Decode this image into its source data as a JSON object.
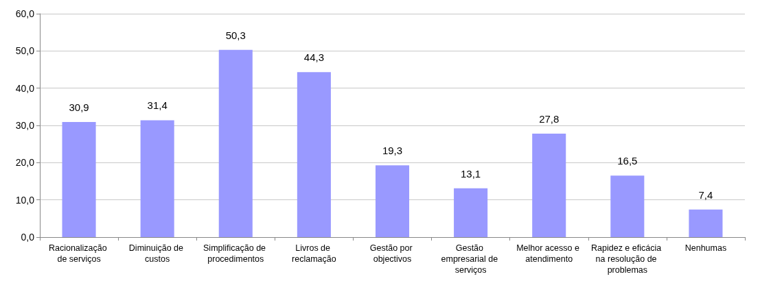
{
  "chart_data": {
    "type": "bar",
    "categories": [
      "Racionalização de serviços",
      "Diminuição de custos",
      "Simplificação de procedimentos",
      "Livros de reclamação",
      "Gestão por objectivos",
      "Gestão empresarial de serviços",
      "Melhor acesso e atendimento",
      "Rapidez e eficácia na resolução de problemas",
      "Nenhumas"
    ],
    "values": [
      30.9,
      31.4,
      50.3,
      44.3,
      19.3,
      13.1,
      27.8,
      16.5,
      7.4
    ],
    "value_labels": [
      "30,9",
      "31,4",
      "50,3",
      "44,3",
      "19,3",
      "13,1",
      "27,8",
      "16,5",
      "7,4"
    ],
    "color": "#9999ff",
    "ylim": [
      0,
      60
    ],
    "yticks": [
      {
        "value": 0,
        "label": "0,0"
      },
      {
        "value": 10,
        "label": "10,0"
      },
      {
        "value": 20,
        "label": "20,0"
      },
      {
        "value": 30,
        "label": "30,0"
      },
      {
        "value": 40,
        "label": "40,0"
      },
      {
        "value": 50,
        "label": "50,0"
      },
      {
        "value": 60,
        "label": "60,0"
      }
    ],
    "grid": "y"
  }
}
